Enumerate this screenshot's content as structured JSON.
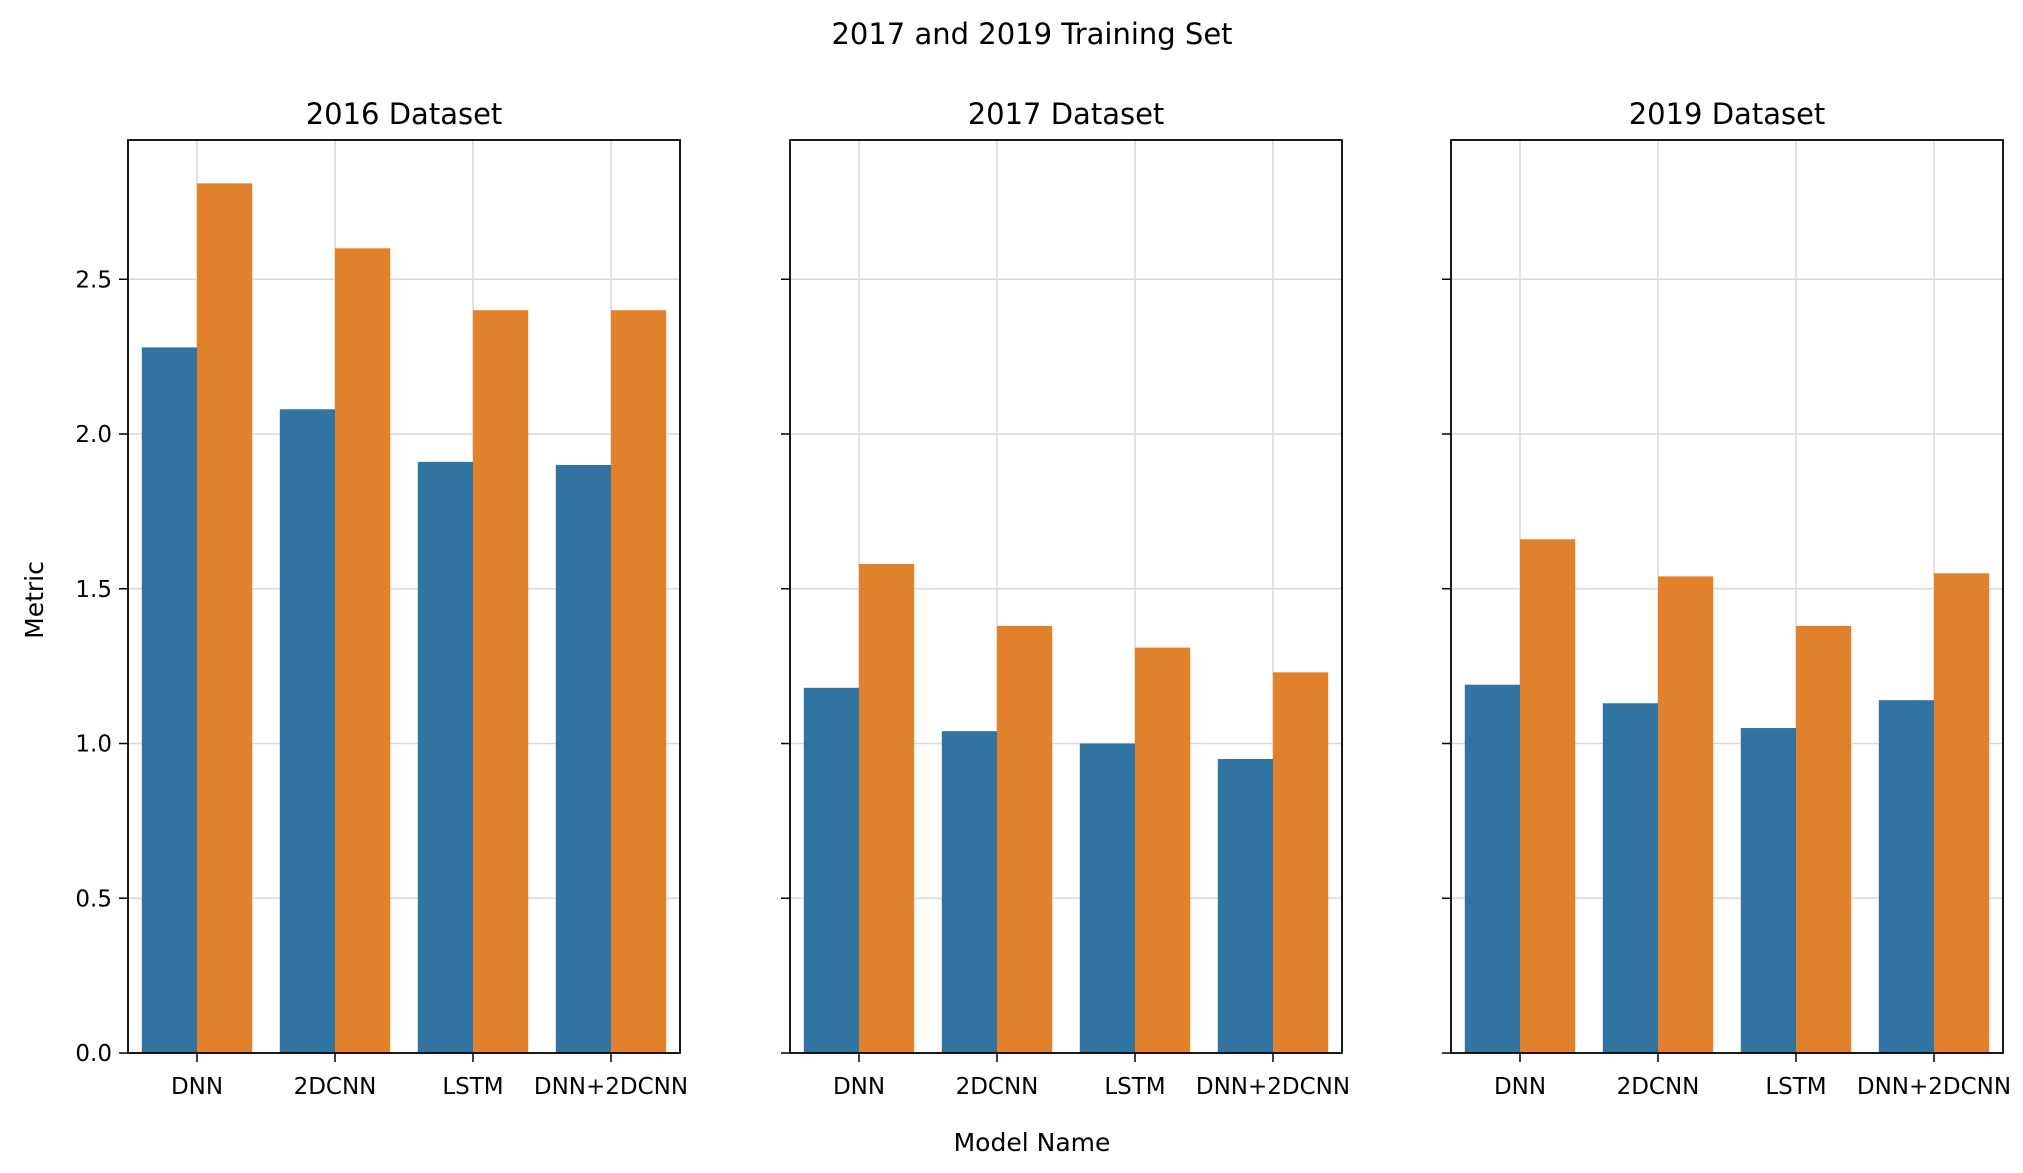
{
  "chart_data": {
    "type": "bar",
    "suptitle": "2017 and 2019 Training Set",
    "xlabel": "Model Name",
    "ylabel": "Metric",
    "ylim": [
      0,
      2.95
    ],
    "yticks": [
      "0.0",
      "0.5",
      "1.0",
      "1.5",
      "2.0",
      "2.5"
    ],
    "grid": true,
    "legend": "none",
    "colors": [
      "#3274a1",
      "#e1812c"
    ],
    "categories": [
      "DNN",
      "2DCNN",
      "LSTM",
      "DNN+2DCNN"
    ],
    "panels": [
      {
        "title": "2016 Dataset",
        "series": [
          {
            "values": [
              2.28,
              2.08,
              1.91,
              1.9
            ]
          },
          {
            "values": [
              2.81,
              2.6,
              2.4,
              2.4
            ]
          }
        ]
      },
      {
        "title": "2017 Dataset",
        "series": [
          {
            "values": [
              1.18,
              1.04,
              1.0,
              0.95
            ]
          },
          {
            "values": [
              1.58,
              1.38,
              1.31,
              1.23
            ]
          }
        ]
      },
      {
        "title": "2019 Dataset",
        "series": [
          {
            "values": [
              1.19,
              1.13,
              1.05,
              1.14
            ]
          },
          {
            "values": [
              1.66,
              1.54,
              1.38,
              1.55
            ]
          }
        ]
      }
    ]
  }
}
